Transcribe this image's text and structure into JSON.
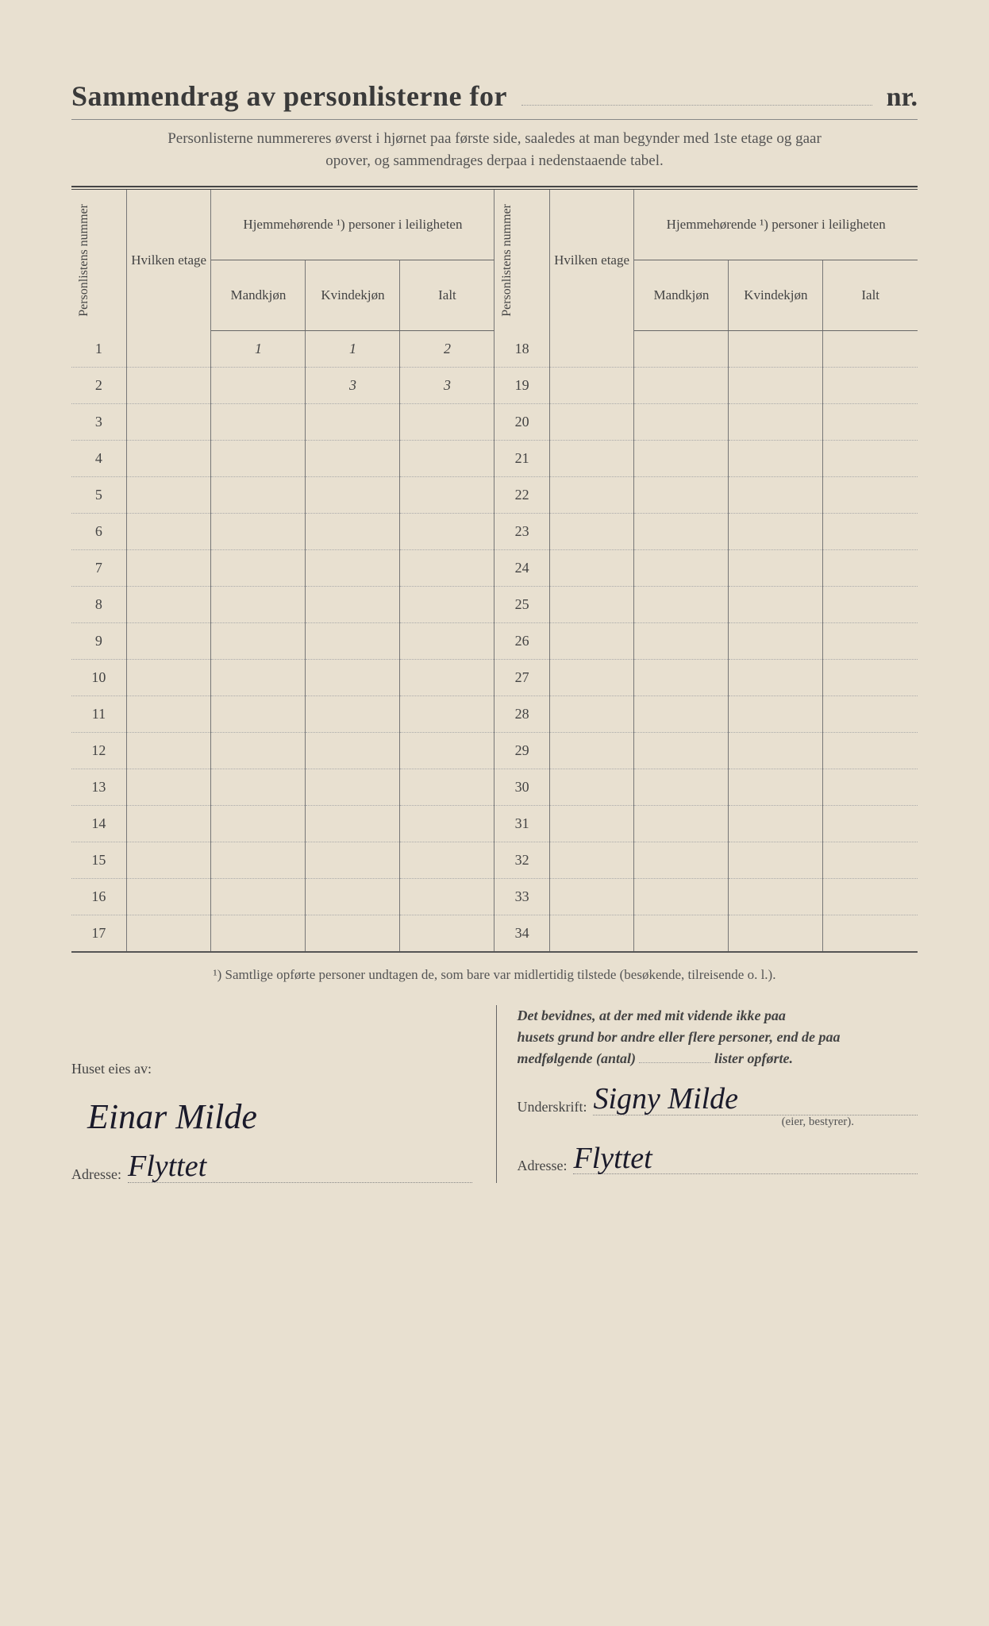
{
  "title_main": "Sammendrag av personlisterne for",
  "title_nr": "nr.",
  "intro_line1": "Personlisterne nummereres øverst i hjørnet paa første side, saaledes at man begynder med 1ste etage og gaar",
  "intro_line2": "opover, og sammendrages derpaa i nedenstaaende tabel.",
  "head": {
    "personlistens_nummer": "Personlistens nummer",
    "hvilken_etage": "Hvilken etage",
    "hjemme_group": "Hjemmehørende ¹) personer i leiligheten",
    "mandkjon": "Mandkjøn",
    "kvindekjon": "Kvindekjøn",
    "ialt": "Ialt"
  },
  "left_rows": [
    {
      "n": "1",
      "etage": "",
      "m": "1",
      "k": "1",
      "i": "2"
    },
    {
      "n": "2",
      "etage": "",
      "m": "",
      "k": "3",
      "i": "3"
    },
    {
      "n": "3",
      "etage": "",
      "m": "",
      "k": "",
      "i": ""
    },
    {
      "n": "4",
      "etage": "",
      "m": "",
      "k": "",
      "i": ""
    },
    {
      "n": "5",
      "etage": "",
      "m": "",
      "k": "",
      "i": ""
    },
    {
      "n": "6",
      "etage": "",
      "m": "",
      "k": "",
      "i": ""
    },
    {
      "n": "7",
      "etage": "",
      "m": "",
      "k": "",
      "i": ""
    },
    {
      "n": "8",
      "etage": "",
      "m": "",
      "k": "",
      "i": ""
    },
    {
      "n": "9",
      "etage": "",
      "m": "",
      "k": "",
      "i": ""
    },
    {
      "n": "10",
      "etage": "",
      "m": "",
      "k": "",
      "i": ""
    },
    {
      "n": "11",
      "etage": "",
      "m": "",
      "k": "",
      "i": ""
    },
    {
      "n": "12",
      "etage": "",
      "m": "",
      "k": "",
      "i": ""
    },
    {
      "n": "13",
      "etage": "",
      "m": "",
      "k": "",
      "i": ""
    },
    {
      "n": "14",
      "etage": "",
      "m": "",
      "k": "",
      "i": ""
    },
    {
      "n": "15",
      "etage": "",
      "m": "",
      "k": "",
      "i": ""
    },
    {
      "n": "16",
      "etage": "",
      "m": "",
      "k": "",
      "i": ""
    },
    {
      "n": "17",
      "etage": "",
      "m": "",
      "k": "",
      "i": ""
    }
  ],
  "right_rows": [
    {
      "n": "18"
    },
    {
      "n": "19"
    },
    {
      "n": "20"
    },
    {
      "n": "21"
    },
    {
      "n": "22"
    },
    {
      "n": "23"
    },
    {
      "n": "24"
    },
    {
      "n": "25"
    },
    {
      "n": "26"
    },
    {
      "n": "27"
    },
    {
      "n": "28"
    },
    {
      "n": "29"
    },
    {
      "n": "30"
    },
    {
      "n": "31"
    },
    {
      "n": "32"
    },
    {
      "n": "33"
    },
    {
      "n": "34"
    }
  ],
  "footnote": "¹)  Samtlige opførte personer undtagen de, som bare var midlertidig tilstede (besøkende, tilreisende o. l.).",
  "lower": {
    "huset_eies_av": "Huset eies av:",
    "owner_sig": "Einar Milde",
    "adresse_label": "Adresse:",
    "adresse_left": "Flyttet",
    "decl_l1": "Det bevidnes, at der med mit vidende ikke paa",
    "decl_l2": "husets grund bor andre eller flere personer, end de paa",
    "decl_l3a": "medfølgende (antal)",
    "decl_l3b": "lister opførte.",
    "underskrift_label": "Underskrift:",
    "underskrift_val": "Signy Milde",
    "eier": "(eier, bestyrer).",
    "adresse_right": "Flyttet"
  },
  "colors": {
    "paper": "#e8e0d0",
    "ink": "#3a3a3a",
    "rule": "#555",
    "hand": "#1a1a2a"
  }
}
